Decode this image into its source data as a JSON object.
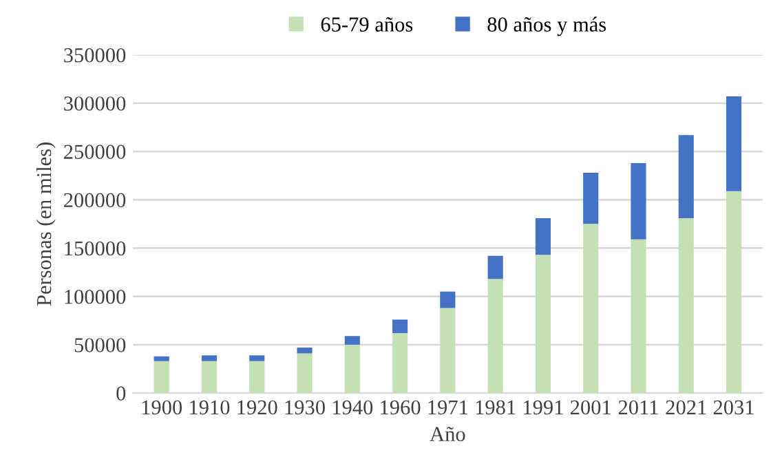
{
  "chart_data": {
    "type": "bar",
    "stacked": true,
    "xlabel": "Año",
    "ylabel": "Personas (en miles)",
    "categories": [
      "1900",
      "1910",
      "1920",
      "1930",
      "1940",
      "1960",
      "1971",
      "1981",
      "1991",
      "2001",
      "2011",
      "2021",
      "2031"
    ],
    "series": [
      {
        "name": "65-79 años",
        "color": "#c5e0b4",
        "values": [
          33000,
          33000,
          33000,
          41000,
          50000,
          62000,
          88000,
          118000,
          143000,
          175000,
          159000,
          181000,
          209000
        ]
      },
      {
        "name": "80 años y más",
        "color": "#4472c4",
        "values": [
          5000,
          6000,
          6000,
          6000,
          9000,
          14000,
          17000,
          24000,
          38000,
          53000,
          79000,
          86000,
          98000
        ]
      }
    ],
    "ylim": [
      0,
      350000
    ],
    "yticks": [
      0,
      50000,
      100000,
      150000,
      200000,
      250000,
      300000,
      350000
    ],
    "grid": "y",
    "legend": "top"
  }
}
